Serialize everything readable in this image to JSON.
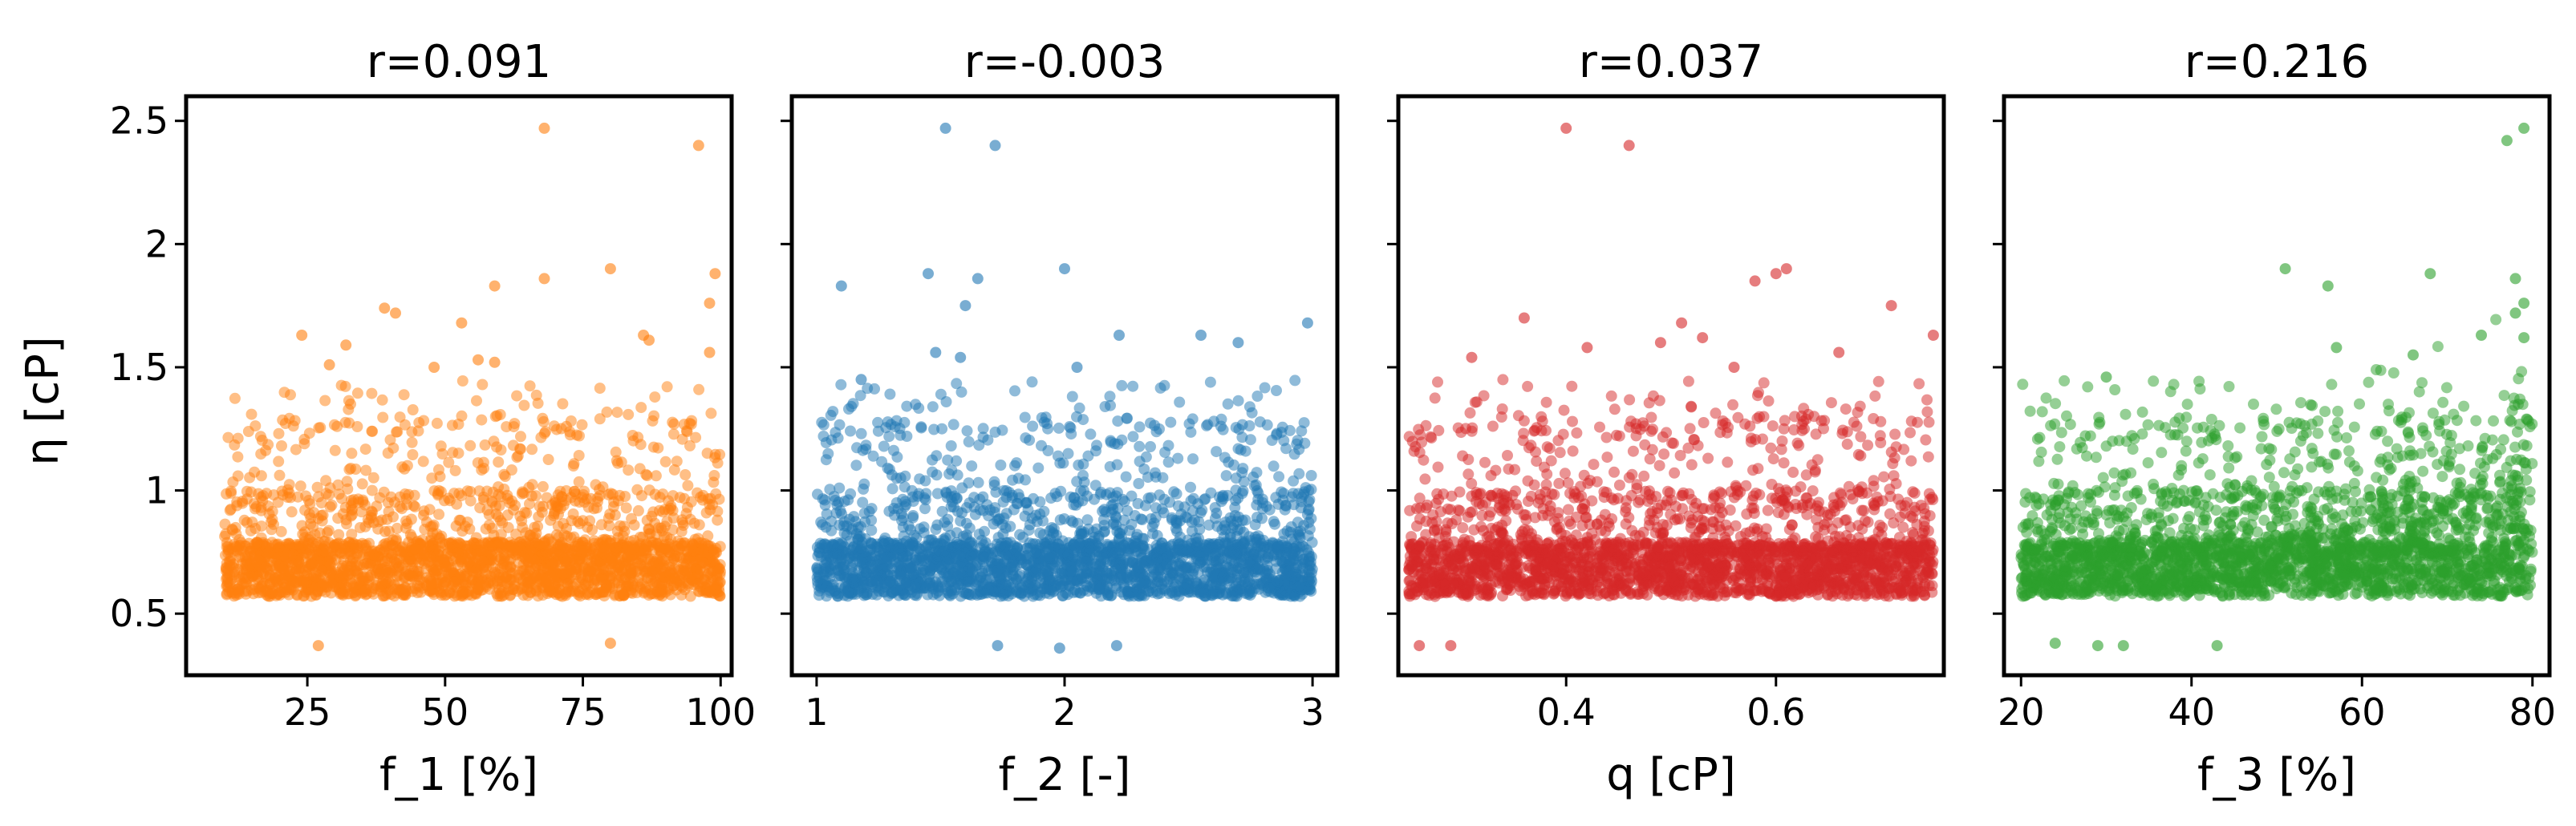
{
  "chart_data": [
    {
      "type": "scatter",
      "title": "r=0.091",
      "xlabel": "f_1 [%]",
      "ylabel": "η [cP]",
      "xlim": [
        3,
        102
      ],
      "ylim": [
        0.25,
        2.6
      ],
      "xticks": [
        25,
        50,
        75,
        100
      ],
      "yticks": [
        0.5,
        1.0,
        1.5,
        2.0,
        2.5
      ],
      "color": "#ff7f0e",
      "x_range": [
        10,
        100
      ],
      "points": [
        [
          68,
          2.47
        ],
        [
          96,
          2.4
        ],
        [
          80,
          1.9
        ],
        [
          99,
          1.88
        ],
        [
          68,
          1.86
        ],
        [
          59,
          1.83
        ],
        [
          98,
          1.76
        ],
        [
          39,
          1.74
        ],
        [
          41,
          1.72
        ],
        [
          53,
          1.68
        ],
        [
          86,
          1.63
        ],
        [
          24,
          1.63
        ],
        [
          87,
          1.61
        ],
        [
          32,
          1.59
        ],
        [
          98,
          1.56
        ],
        [
          56,
          1.53
        ],
        [
          59,
          1.52
        ],
        [
          29,
          1.51
        ],
        [
          48,
          1.5
        ],
        [
          70,
          0.95
        ],
        [
          27,
          0.37
        ],
        [
          80,
          0.38
        ]
      ]
    },
    {
      "type": "scatter",
      "title": "r=-0.003",
      "xlabel": "f_2 [-]",
      "ylabel": "",
      "xlim": [
        0.9,
        3.1
      ],
      "ylim": [
        0.25,
        2.6
      ],
      "xticks": [
        1,
        2,
        3
      ],
      "yticks": [
        0.5,
        1.0,
        1.5,
        2.0,
        2.5
      ],
      "color": "#1f77b4",
      "x_range": [
        1,
        3
      ],
      "points": [
        [
          1.52,
          2.47
        ],
        [
          1.72,
          2.4
        ],
        [
          2.0,
          1.9
        ],
        [
          1.45,
          1.88
        ],
        [
          1.65,
          1.86
        ],
        [
          1.1,
          1.83
        ],
        [
          1.6,
          1.75
        ],
        [
          2.98,
          1.68
        ],
        [
          2.22,
          1.63
        ],
        [
          2.55,
          1.63
        ],
        [
          2.7,
          1.6
        ],
        [
          1.48,
          1.56
        ],
        [
          1.58,
          1.54
        ],
        [
          2.05,
          1.5
        ],
        [
          1.18,
          1.45
        ],
        [
          1.73,
          0.37
        ],
        [
          1.98,
          0.36
        ],
        [
          2.21,
          0.37
        ]
      ]
    },
    {
      "type": "scatter",
      "title": "r=0.037",
      "xlabel": "q [cP]",
      "ylabel": "",
      "xlim": [
        0.24,
        0.76
      ],
      "ylim": [
        0.25,
        2.6
      ],
      "xticks": [
        0.4,
        0.6
      ],
      "yticks": [
        0.5,
        1.0,
        1.5,
        2.0,
        2.5
      ],
      "color": "#d62728",
      "x_range": [
        0.25,
        0.75
      ],
      "points": [
        [
          0.4,
          2.47
        ],
        [
          0.46,
          2.4
        ],
        [
          0.61,
          1.9
        ],
        [
          0.6,
          1.88
        ],
        [
          0.58,
          1.85
        ],
        [
          0.71,
          1.75
        ],
        [
          0.36,
          1.7
        ],
        [
          0.51,
          1.68
        ],
        [
          0.53,
          1.62
        ],
        [
          0.75,
          1.63
        ],
        [
          0.49,
          1.6
        ],
        [
          0.42,
          1.58
        ],
        [
          0.66,
          1.56
        ],
        [
          0.31,
          1.54
        ],
        [
          0.56,
          1.5
        ],
        [
          0.26,
          0.37
        ],
        [
          0.29,
          0.37
        ]
      ]
    },
    {
      "type": "scatter",
      "title": "r=0.216",
      "xlabel": "f_3 [%]",
      "ylabel": "",
      "xlim": [
        18,
        82
      ],
      "ylim": [
        0.25,
        2.6
      ],
      "xticks": [
        20,
        40,
        60,
        80
      ],
      "yticks": [
        0.5,
        1.0,
        1.5,
        2.0,
        2.5
      ],
      "color": "#2ca02c",
      "x_range": [
        20,
        80
      ],
      "points": [
        [
          79,
          2.47
        ],
        [
          77,
          2.42
        ],
        [
          51,
          1.9
        ],
        [
          68,
          1.88
        ],
        [
          78,
          1.86
        ],
        [
          56,
          1.83
        ],
        [
          79,
          1.76
        ],
        [
          78,
          1.72
        ],
        [
          74,
          1.63
        ],
        [
          79,
          1.62
        ],
        [
          57,
          1.58
        ],
        [
          66,
          1.55
        ],
        [
          30,
          1.46
        ],
        [
          43,
          0.37
        ],
        [
          24,
          0.38
        ],
        [
          29,
          0.37
        ],
        [
          32,
          0.37
        ]
      ]
    }
  ]
}
